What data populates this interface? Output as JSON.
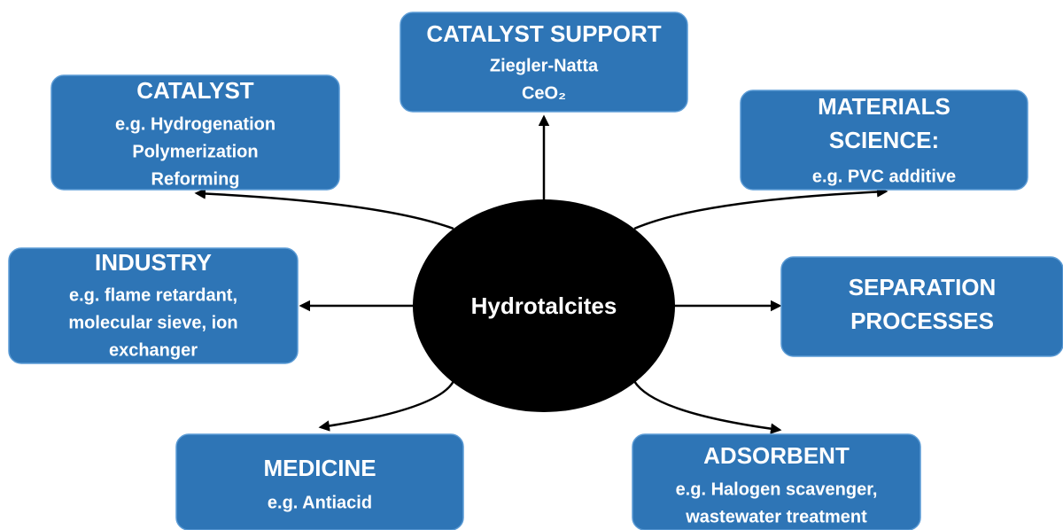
{
  "center": {
    "label": "Hydrotalcites"
  },
  "nodes": [
    {
      "title": [
        "CATALYST SUPPORT"
      ],
      "lines": [
        "Ziegler-Natta",
        "CeO₂"
      ]
    },
    {
      "title": [
        "CATALYST"
      ],
      "lines": [
        "e.g. Hydrogenation",
        "Polymerization",
        "Reforming"
      ]
    },
    {
      "title": [
        "MATERIALS",
        "SCIENCE:"
      ],
      "lines": [
        "e.g. PVC additive"
      ]
    },
    {
      "title": [
        "INDUSTRY"
      ],
      "lines": [
        "e.g. flame retardant,",
        "molecular sieve, ion",
        "exchanger"
      ]
    },
    {
      "title": [
        "SEPARATION",
        "PROCESSES"
      ],
      "lines": []
    },
    {
      "title": [
        "MEDICINE"
      ],
      "lines": [
        "e.g. Antiacid"
      ]
    },
    {
      "title": [
        "ADSORBENT"
      ],
      "lines": [
        "e.g. Halogen scavenger,",
        "wastewater treatment"
      ]
    }
  ]
}
